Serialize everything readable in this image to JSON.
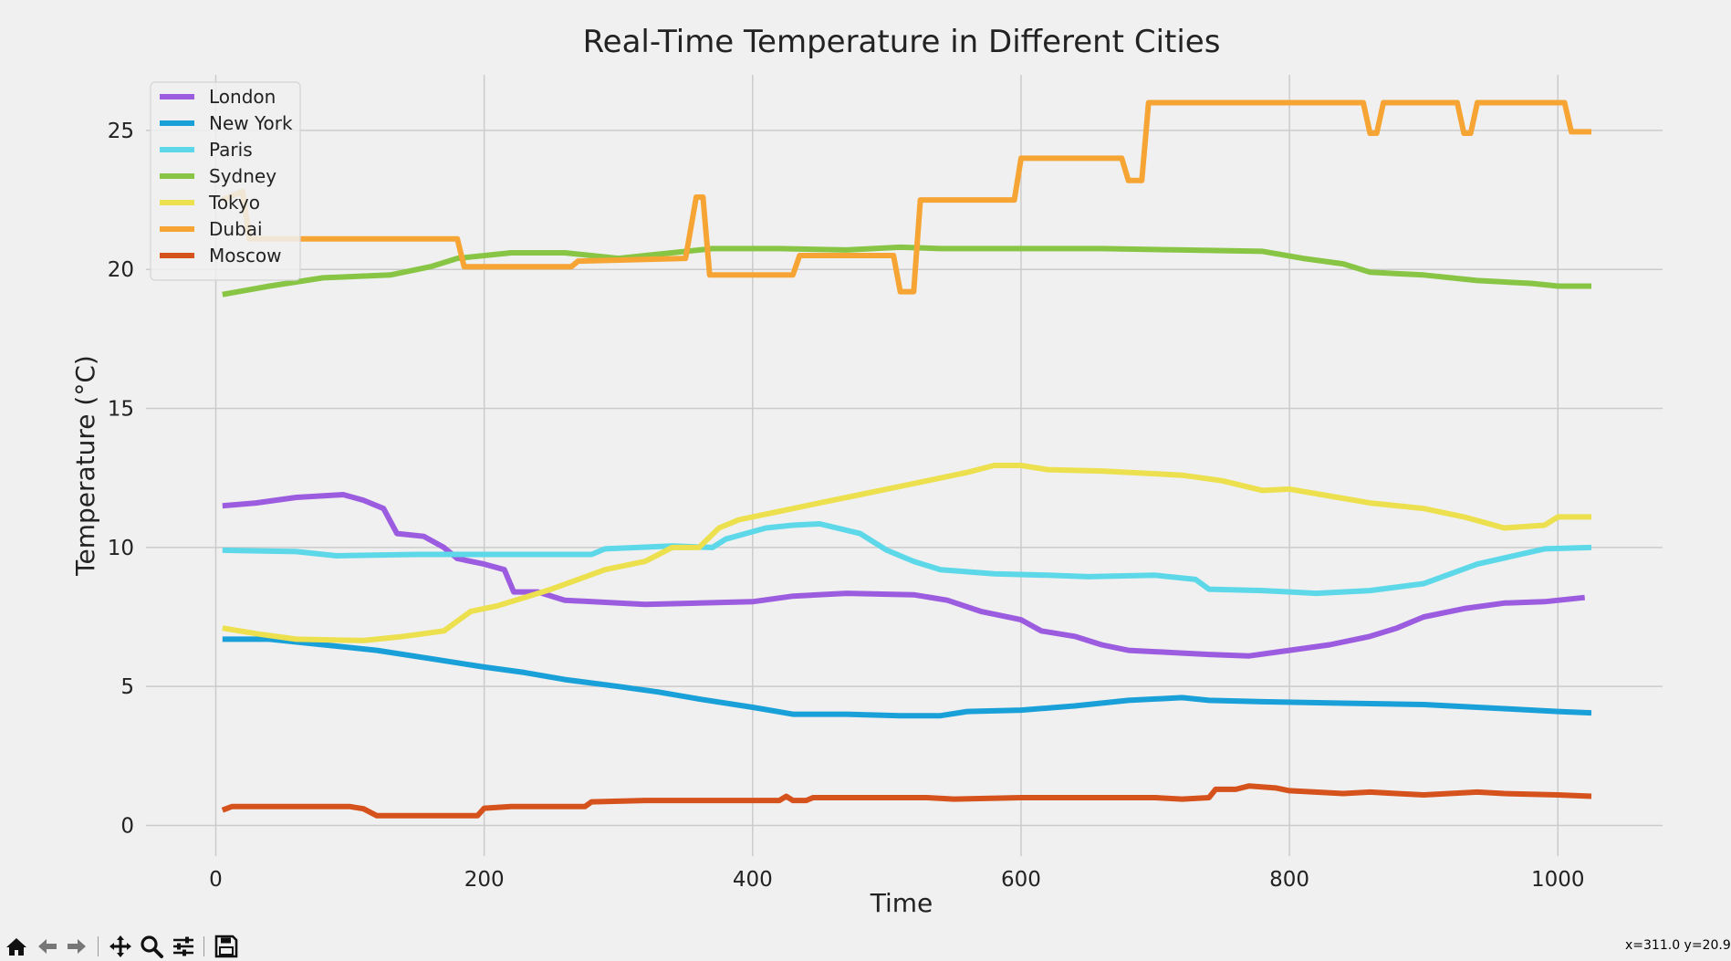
{
  "chart_data": {
    "type": "line",
    "title": "Real-Time Temperature in Different Cities",
    "xlabel": "Time",
    "ylabel": "Temperature (°C)",
    "xlim": [
      -52,
      1078
    ],
    "ylim": [
      -1.1,
      27.0
    ],
    "xticks": [
      0,
      200,
      400,
      600,
      800,
      1000
    ],
    "yticks": [
      0,
      5,
      10,
      15,
      20,
      25
    ],
    "grid": true,
    "legend_position": "top-left",
    "series": [
      {
        "name": "London",
        "color": "#9c5ce0",
        "points": [
          [
            5,
            11.5
          ],
          [
            30,
            11.6
          ],
          [
            60,
            11.8
          ],
          [
            95,
            11.9
          ],
          [
            110,
            11.7
          ],
          [
            125,
            11.4
          ],
          [
            135,
            10.5
          ],
          [
            155,
            10.4
          ],
          [
            170,
            10.0
          ],
          [
            180,
            9.6
          ],
          [
            200,
            9.4
          ],
          [
            215,
            9.2
          ],
          [
            222,
            8.4
          ],
          [
            240,
            8.4
          ],
          [
            260,
            8.1
          ],
          [
            300,
            8.0
          ],
          [
            320,
            7.95
          ],
          [
            360,
            8.0
          ],
          [
            400,
            8.05
          ],
          [
            430,
            8.25
          ],
          [
            470,
            8.35
          ],
          [
            520,
            8.3
          ],
          [
            545,
            8.1
          ],
          [
            570,
            7.7
          ],
          [
            600,
            7.4
          ],
          [
            615,
            7.0
          ],
          [
            640,
            6.8
          ],
          [
            660,
            6.5
          ],
          [
            680,
            6.3
          ],
          [
            720,
            6.2
          ],
          [
            740,
            6.15
          ],
          [
            770,
            6.1
          ],
          [
            800,
            6.3
          ],
          [
            830,
            6.5
          ],
          [
            860,
            6.8
          ],
          [
            880,
            7.1
          ],
          [
            900,
            7.5
          ],
          [
            930,
            7.8
          ],
          [
            960,
            8.0
          ],
          [
            990,
            8.05
          ],
          [
            1020,
            8.2
          ]
        ]
      },
      {
        "name": "New York",
        "color": "#1aa0d8",
        "points": [
          [
            5,
            6.7
          ],
          [
            40,
            6.7
          ],
          [
            80,
            6.5
          ],
          [
            120,
            6.3
          ],
          [
            160,
            6.0
          ],
          [
            200,
            5.7
          ],
          [
            230,
            5.5
          ],
          [
            260,
            5.25
          ],
          [
            300,
            5.0
          ],
          [
            330,
            4.8
          ],
          [
            360,
            4.55
          ],
          [
            400,
            4.25
          ],
          [
            430,
            4.0
          ],
          [
            470,
            4.0
          ],
          [
            510,
            3.95
          ],
          [
            540,
            3.95
          ],
          [
            560,
            4.1
          ],
          [
            600,
            4.15
          ],
          [
            640,
            4.3
          ],
          [
            680,
            4.5
          ],
          [
            720,
            4.6
          ],
          [
            740,
            4.5
          ],
          [
            780,
            4.45
          ],
          [
            840,
            4.4
          ],
          [
            900,
            4.35
          ],
          [
            960,
            4.2
          ],
          [
            1000,
            4.1
          ],
          [
            1025,
            4.05
          ]
        ]
      },
      {
        "name": "Paris",
        "color": "#5cd8e8",
        "points": [
          [
            5,
            9.9
          ],
          [
            60,
            9.85
          ],
          [
            90,
            9.7
          ],
          [
            150,
            9.75
          ],
          [
            200,
            9.75
          ],
          [
            280,
            9.75
          ],
          [
            290,
            9.95
          ],
          [
            340,
            10.05
          ],
          [
            370,
            10.0
          ],
          [
            380,
            10.3
          ],
          [
            410,
            10.7
          ],
          [
            430,
            10.8
          ],
          [
            450,
            10.85
          ],
          [
            480,
            10.5
          ],
          [
            500,
            9.9
          ],
          [
            520,
            9.5
          ],
          [
            540,
            9.2
          ],
          [
            580,
            9.05
          ],
          [
            620,
            9.0
          ],
          [
            650,
            8.95
          ],
          [
            700,
            9.0
          ],
          [
            730,
            8.85
          ],
          [
            740,
            8.5
          ],
          [
            780,
            8.45
          ],
          [
            820,
            8.35
          ],
          [
            860,
            8.45
          ],
          [
            900,
            8.7
          ],
          [
            940,
            9.4
          ],
          [
            990,
            9.95
          ],
          [
            1025,
            10.0
          ]
        ]
      },
      {
        "name": "Sydney",
        "color": "#88c544",
        "points": [
          [
            5,
            19.1
          ],
          [
            40,
            19.4
          ],
          [
            80,
            19.7
          ],
          [
            130,
            19.8
          ],
          [
            160,
            20.1
          ],
          [
            180,
            20.4
          ],
          [
            220,
            20.6
          ],
          [
            260,
            20.6
          ],
          [
            300,
            20.4
          ],
          [
            330,
            20.55
          ],
          [
            370,
            20.75
          ],
          [
            420,
            20.75
          ],
          [
            470,
            20.7
          ],
          [
            510,
            20.8
          ],
          [
            540,
            20.75
          ],
          [
            600,
            20.75
          ],
          [
            660,
            20.75
          ],
          [
            720,
            20.7
          ],
          [
            780,
            20.65
          ],
          [
            810,
            20.4
          ],
          [
            840,
            20.2
          ],
          [
            860,
            19.9
          ],
          [
            900,
            19.8
          ],
          [
            940,
            19.6
          ],
          [
            980,
            19.5
          ],
          [
            1000,
            19.4
          ],
          [
            1025,
            19.4
          ]
        ]
      },
      {
        "name": "Tokyo",
        "color": "#ece04e",
        "points": [
          [
            5,
            7.1
          ],
          [
            30,
            6.9
          ],
          [
            60,
            6.7
          ],
          [
            110,
            6.65
          ],
          [
            140,
            6.8
          ],
          [
            170,
            7.0
          ],
          [
            190,
            7.7
          ],
          [
            210,
            7.9
          ],
          [
            230,
            8.2
          ],
          [
            250,
            8.5
          ],
          [
            270,
            8.85
          ],
          [
            290,
            9.2
          ],
          [
            320,
            9.5
          ],
          [
            340,
            10.0
          ],
          [
            360,
            10.0
          ],
          [
            375,
            10.7
          ],
          [
            390,
            11.0
          ],
          [
            420,
            11.3
          ],
          [
            450,
            11.6
          ],
          [
            480,
            11.9
          ],
          [
            500,
            12.1
          ],
          [
            530,
            12.4
          ],
          [
            560,
            12.7
          ],
          [
            580,
            12.95
          ],
          [
            600,
            12.95
          ],
          [
            620,
            12.8
          ],
          [
            660,
            12.75
          ],
          [
            700,
            12.65
          ],
          [
            720,
            12.6
          ],
          [
            750,
            12.4
          ],
          [
            780,
            12.05
          ],
          [
            800,
            12.1
          ],
          [
            830,
            11.85
          ],
          [
            860,
            11.6
          ],
          [
            900,
            11.4
          ],
          [
            930,
            11.1
          ],
          [
            960,
            10.7
          ],
          [
            990,
            10.8
          ],
          [
            1000,
            11.1
          ],
          [
            1025,
            11.1
          ]
        ]
      },
      {
        "name": "Dubai",
        "color": "#f6a535",
        "points": [
          [
            5,
            22.5
          ],
          [
            20,
            22.8
          ],
          [
            25,
            21.1
          ],
          [
            180,
            21.1
          ],
          [
            185,
            20.1
          ],
          [
            265,
            20.1
          ],
          [
            270,
            20.3
          ],
          [
            350,
            20.4
          ],
          [
            358,
            22.6
          ],
          [
            363,
            22.6
          ],
          [
            368,
            19.8
          ],
          [
            430,
            19.8
          ],
          [
            435,
            20.5
          ],
          [
            505,
            20.5
          ],
          [
            510,
            19.2
          ],
          [
            520,
            19.2
          ],
          [
            525,
            22.5
          ],
          [
            595,
            22.5
          ],
          [
            600,
            24.0
          ],
          [
            675,
            24.0
          ],
          [
            680,
            23.2
          ],
          [
            690,
            23.2
          ],
          [
            695,
            26.0
          ],
          [
            855,
            26.0
          ],
          [
            860,
            24.9
          ],
          [
            865,
            24.9
          ],
          [
            870,
            26.0
          ],
          [
            925,
            26.0
          ],
          [
            930,
            24.9
          ],
          [
            935,
            24.9
          ],
          [
            940,
            26.0
          ],
          [
            1005,
            26.0
          ],
          [
            1010,
            24.95
          ],
          [
            1025,
            24.95
          ]
        ]
      },
      {
        "name": "Moscow",
        "color": "#d6521c",
        "points": [
          [
            5,
            0.55
          ],
          [
            12,
            0.68
          ],
          [
            100,
            0.68
          ],
          [
            110,
            0.6
          ],
          [
            120,
            0.35
          ],
          [
            195,
            0.35
          ],
          [
            200,
            0.62
          ],
          [
            220,
            0.68
          ],
          [
            275,
            0.68
          ],
          [
            280,
            0.85
          ],
          [
            320,
            0.9
          ],
          [
            420,
            0.9
          ],
          [
            425,
            1.05
          ],
          [
            430,
            0.9
          ],
          [
            440,
            0.9
          ],
          [
            445,
            1.0
          ],
          [
            530,
            1.0
          ],
          [
            550,
            0.95
          ],
          [
            600,
            1.0
          ],
          [
            700,
            1.0
          ],
          [
            720,
            0.95
          ],
          [
            740,
            1.0
          ],
          [
            745,
            1.3
          ],
          [
            760,
            1.3
          ],
          [
            770,
            1.42
          ],
          [
            790,
            1.35
          ],
          [
            800,
            1.25
          ],
          [
            840,
            1.15
          ],
          [
            860,
            1.2
          ],
          [
            880,
            1.15
          ],
          [
            900,
            1.1
          ],
          [
            940,
            1.2
          ],
          [
            960,
            1.15
          ],
          [
            1000,
            1.1
          ],
          [
            1025,
            1.05
          ]
        ]
      }
    ]
  },
  "toolbar": {
    "icons": [
      "home-icon",
      "back-icon",
      "forward-icon",
      "pan-icon",
      "zoom-icon",
      "configure-icon",
      "save-icon"
    ]
  },
  "status": {
    "coords": "x=311.0 y=20.9"
  }
}
